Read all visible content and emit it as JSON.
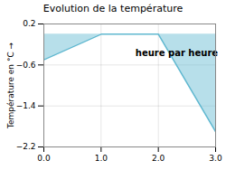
{
  "chart_data": {
    "type": "area",
    "title": "Evolution de la température",
    "y_label": "Température en °C",
    "x": [
      0,
      1,
      2,
      3
    ],
    "values": [
      -0.5,
      0.0,
      0.0,
      -1.9
    ],
    "color": "#60b8d0",
    "xlim": [
      0,
      3
    ],
    "ylim": [
      -2.2,
      0.2
    ],
    "xticks": [
      0,
      1,
      2,
      3
    ],
    "yticks": [
      0.2,
      -0.6,
      -1.4,
      -2.2
    ],
    "grid": true,
    "annotations": [
      {
        "text": "heure par heure",
        "x": 1.6,
        "y": -0.42
      }
    ]
  }
}
